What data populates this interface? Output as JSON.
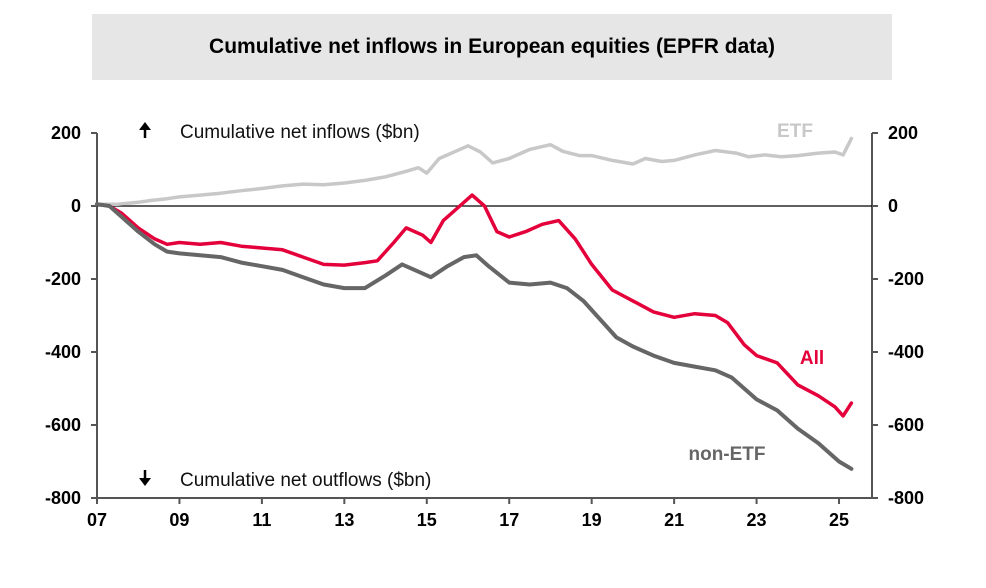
{
  "chart_data": {
    "type": "line",
    "title": "Cumulative net inflows in European equities (EPFR data)",
    "annotations": {
      "inflows": "Cumulative net inflows ($bn)",
      "outflows": "Cumulative net outflows ($bn)"
    },
    "x_ticks": [
      "07",
      "09",
      "11",
      "13",
      "15",
      "17",
      "19",
      "21",
      "23",
      "25"
    ],
    "x_range": [
      2007,
      2025.8
    ],
    "y_ticks": [
      "200",
      "0",
      "-200",
      "-400",
      "-600",
      "-800"
    ],
    "ylim": [
      -800,
      200
    ],
    "y_right_axis": true,
    "series": [
      {
        "name": "ETF",
        "color": "#c8c8c8",
        "points": [
          [
            2007.0,
            5
          ],
          [
            2007.5,
            5
          ],
          [
            2008.0,
            10
          ],
          [
            2008.3,
            15
          ],
          [
            2008.7,
            20
          ],
          [
            2009.0,
            25
          ],
          [
            2009.5,
            30
          ],
          [
            2010.0,
            35
          ],
          [
            2010.5,
            42
          ],
          [
            2011.0,
            48
          ],
          [
            2011.5,
            55
          ],
          [
            2012.0,
            60
          ],
          [
            2012.5,
            58
          ],
          [
            2013.0,
            63
          ],
          [
            2013.5,
            70
          ],
          [
            2014.0,
            80
          ],
          [
            2014.5,
            95
          ],
          [
            2014.8,
            105
          ],
          [
            2015.0,
            90
          ],
          [
            2015.3,
            130
          ],
          [
            2015.7,
            150
          ],
          [
            2016.0,
            165
          ],
          [
            2016.3,
            148
          ],
          [
            2016.6,
            118
          ],
          [
            2017.0,
            130
          ],
          [
            2017.5,
            155
          ],
          [
            2018.0,
            168
          ],
          [
            2018.3,
            150
          ],
          [
            2018.7,
            138
          ],
          [
            2019.0,
            138
          ],
          [
            2019.5,
            125
          ],
          [
            2020.0,
            115
          ],
          [
            2020.3,
            130
          ],
          [
            2020.7,
            122
          ],
          [
            2021.0,
            125
          ],
          [
            2021.5,
            140
          ],
          [
            2022.0,
            152
          ],
          [
            2022.5,
            145
          ],
          [
            2022.8,
            135
          ],
          [
            2023.2,
            140
          ],
          [
            2023.6,
            135
          ],
          [
            2024.0,
            138
          ],
          [
            2024.5,
            145
          ],
          [
            2024.9,
            148
          ],
          [
            2025.1,
            140
          ],
          [
            2025.3,
            185
          ]
        ]
      },
      {
        "name": "All",
        "color": "#e4003a",
        "points": [
          [
            2007.0,
            5
          ],
          [
            2007.3,
            0
          ],
          [
            2007.6,
            -20
          ],
          [
            2008.0,
            -60
          ],
          [
            2008.4,
            -90
          ],
          [
            2008.7,
            -105
          ],
          [
            2009.0,
            -100
          ],
          [
            2009.5,
            -105
          ],
          [
            2010.0,
            -100
          ],
          [
            2010.5,
            -110
          ],
          [
            2011.0,
            -115
          ],
          [
            2011.5,
            -120
          ],
          [
            2012.0,
            -140
          ],
          [
            2012.5,
            -160
          ],
          [
            2013.0,
            -162
          ],
          [
            2013.5,
            -155
          ],
          [
            2013.8,
            -150
          ],
          [
            2014.2,
            -100
          ],
          [
            2014.5,
            -60
          ],
          [
            2014.9,
            -80
          ],
          [
            2015.1,
            -100
          ],
          [
            2015.4,
            -40
          ],
          [
            2015.8,
            0
          ],
          [
            2016.1,
            30
          ],
          [
            2016.4,
            0
          ],
          [
            2016.7,
            -70
          ],
          [
            2017.0,
            -85
          ],
          [
            2017.4,
            -70
          ],
          [
            2017.8,
            -50
          ],
          [
            2018.2,
            -40
          ],
          [
            2018.6,
            -90
          ],
          [
            2019.0,
            -160
          ],
          [
            2019.5,
            -230
          ],
          [
            2020.0,
            -260
          ],
          [
            2020.5,
            -290
          ],
          [
            2021.0,
            -305
          ],
          [
            2021.5,
            -295
          ],
          [
            2022.0,
            -300
          ],
          [
            2022.3,
            -320
          ],
          [
            2022.7,
            -380
          ],
          [
            2023.0,
            -410
          ],
          [
            2023.5,
            -430
          ],
          [
            2024.0,
            -490
          ],
          [
            2024.5,
            -520
          ],
          [
            2024.9,
            -550
          ],
          [
            2025.1,
            -575
          ],
          [
            2025.3,
            -540
          ]
        ]
      },
      {
        "name": "non-ETF",
        "color": "#666666",
        "points": [
          [
            2007.0,
            5
          ],
          [
            2007.3,
            0
          ],
          [
            2007.6,
            -30
          ],
          [
            2008.0,
            -70
          ],
          [
            2008.4,
            -105
          ],
          [
            2008.7,
            -125
          ],
          [
            2009.0,
            -130
          ],
          [
            2009.5,
            -135
          ],
          [
            2010.0,
            -140
          ],
          [
            2010.5,
            -155
          ],
          [
            2011.0,
            -165
          ],
          [
            2011.5,
            -175
          ],
          [
            2012.0,
            -195
          ],
          [
            2012.5,
            -215
          ],
          [
            2013.0,
            -225
          ],
          [
            2013.5,
            -225
          ],
          [
            2014.0,
            -190
          ],
          [
            2014.4,
            -160
          ],
          [
            2014.8,
            -180
          ],
          [
            2015.1,
            -195
          ],
          [
            2015.5,
            -165
          ],
          [
            2015.9,
            -140
          ],
          [
            2016.2,
            -135
          ],
          [
            2016.5,
            -165
          ],
          [
            2017.0,
            -210
          ],
          [
            2017.5,
            -215
          ],
          [
            2018.0,
            -210
          ],
          [
            2018.4,
            -225
          ],
          [
            2018.8,
            -260
          ],
          [
            2019.2,
            -310
          ],
          [
            2019.6,
            -360
          ],
          [
            2020.0,
            -385
          ],
          [
            2020.5,
            -410
          ],
          [
            2021.0,
            -430
          ],
          [
            2021.5,
            -440
          ],
          [
            2022.0,
            -450
          ],
          [
            2022.4,
            -470
          ],
          [
            2022.7,
            -500
          ],
          [
            2023.0,
            -530
          ],
          [
            2023.5,
            -560
          ],
          [
            2024.0,
            -610
          ],
          [
            2024.5,
            -650
          ],
          [
            2025.0,
            -700
          ],
          [
            2025.3,
            -720
          ]
        ]
      }
    ]
  }
}
